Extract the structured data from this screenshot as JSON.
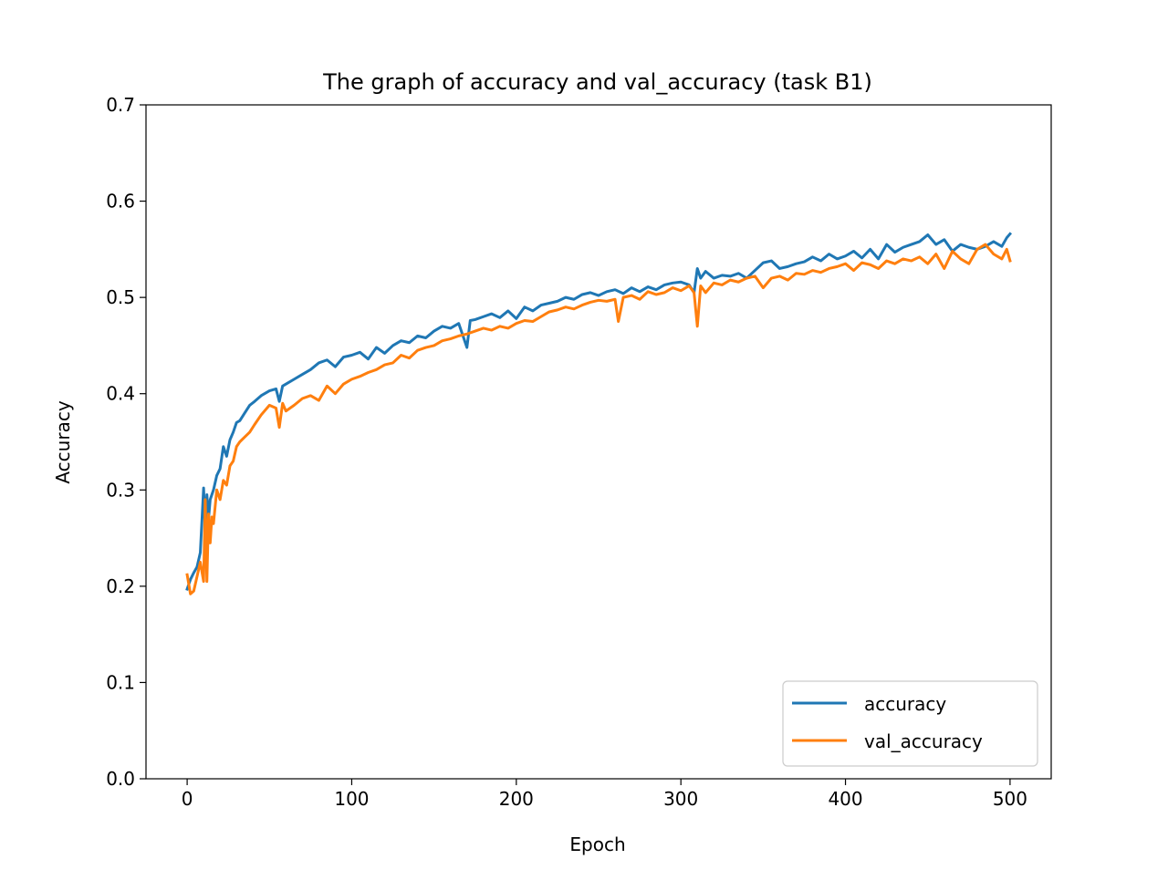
{
  "chart_data": {
    "type": "line",
    "title": "The graph of accuracy and val_accuracy (task B1)",
    "xlabel": "Epoch",
    "ylabel": "Accuracy",
    "xlim": [
      -25,
      525
    ],
    "ylim": [
      0.0,
      0.7
    ],
    "x_ticks": [
      0,
      100,
      200,
      300,
      400,
      500
    ],
    "x_tick_labels": [
      "0",
      "100",
      "200",
      "300",
      "400",
      "500"
    ],
    "y_ticks": [
      0.0,
      0.1,
      0.2,
      0.3,
      0.4,
      0.5,
      0.6,
      0.7
    ],
    "y_tick_labels": [
      "0.0",
      "0.1",
      "0.2",
      "0.3",
      "0.4",
      "0.5",
      "0.6",
      "0.7"
    ],
    "grid": false,
    "legend_position": "lower-right",
    "series": [
      {
        "name": "accuracy",
        "color": "#1f77b4",
        "x": [
          0,
          2,
          4,
          6,
          8,
          10,
          11,
          12,
          13,
          14,
          16,
          18,
          20,
          22,
          24,
          26,
          28,
          30,
          32,
          35,
          38,
          41,
          45,
          50,
          54,
          56,
          58,
          60,
          65,
          70,
          75,
          80,
          85,
          90,
          95,
          100,
          105,
          110,
          115,
          120,
          125,
          130,
          135,
          140,
          145,
          150,
          155,
          160,
          165,
          170,
          172,
          175,
          180,
          185,
          190,
          195,
          200,
          205,
          210,
          215,
          220,
          225,
          230,
          235,
          240,
          245,
          250,
          255,
          260,
          265,
          270,
          275,
          280,
          285,
          290,
          295,
          300,
          305,
          308,
          310,
          312,
          315,
          320,
          325,
          330,
          335,
          340,
          345,
          350,
          355,
          360,
          365,
          370,
          375,
          380,
          385,
          390,
          395,
          400,
          405,
          410,
          415,
          420,
          425,
          430,
          435,
          440,
          445,
          450,
          455,
          460,
          465,
          470,
          475,
          480,
          485,
          490,
          495,
          498,
          500
        ],
        "values": [
          0.197,
          0.207,
          0.214,
          0.22,
          0.235,
          0.302,
          0.26,
          0.295,
          0.27,
          0.29,
          0.3,
          0.315,
          0.322,
          0.345,
          0.335,
          0.352,
          0.36,
          0.37,
          0.372,
          0.38,
          0.388,
          0.392,
          0.398,
          0.403,
          0.405,
          0.392,
          0.408,
          0.41,
          0.415,
          0.42,
          0.425,
          0.432,
          0.435,
          0.428,
          0.438,
          0.44,
          0.443,
          0.436,
          0.448,
          0.442,
          0.45,
          0.455,
          0.453,
          0.46,
          0.458,
          0.465,
          0.47,
          0.468,
          0.473,
          0.448,
          0.476,
          0.477,
          0.48,
          0.483,
          0.479,
          0.486,
          0.478,
          0.49,
          0.486,
          0.492,
          0.494,
          0.496,
          0.5,
          0.498,
          0.503,
          0.505,
          0.502,
          0.506,
          0.508,
          0.504,
          0.51,
          0.506,
          0.511,
          0.508,
          0.513,
          0.515,
          0.516,
          0.513,
          0.505,
          0.53,
          0.52,
          0.527,
          0.52,
          0.523,
          0.522,
          0.525,
          0.52,
          0.528,
          0.536,
          0.538,
          0.53,
          0.532,
          0.535,
          0.537,
          0.542,
          0.538,
          0.545,
          0.54,
          0.543,
          0.548,
          0.541,
          0.55,
          0.54,
          0.555,
          0.547,
          0.552,
          0.555,
          0.558,
          0.565,
          0.555,
          0.56,
          0.548,
          0.555,
          0.552,
          0.55,
          0.553,
          0.558,
          0.553,
          0.562,
          0.566
        ]
      },
      {
        "name": "val_accuracy",
        "color": "#ff7f0e",
        "x": [
          0,
          2,
          4,
          6,
          8,
          10,
          11,
          12,
          13,
          14,
          15,
          16,
          18,
          20,
          22,
          24,
          26,
          28,
          30,
          32,
          35,
          38,
          41,
          45,
          50,
          54,
          56,
          58,
          60,
          65,
          70,
          75,
          80,
          85,
          90,
          95,
          100,
          105,
          110,
          115,
          120,
          125,
          130,
          135,
          140,
          145,
          150,
          155,
          160,
          165,
          170,
          175,
          180,
          185,
          190,
          195,
          200,
          205,
          210,
          215,
          220,
          225,
          230,
          235,
          240,
          245,
          250,
          255,
          260,
          262,
          265,
          270,
          275,
          280,
          285,
          290,
          295,
          300,
          305,
          308,
          310,
          312,
          315,
          320,
          325,
          330,
          335,
          340,
          345,
          350,
          355,
          360,
          365,
          370,
          375,
          380,
          385,
          390,
          395,
          400,
          405,
          410,
          415,
          420,
          425,
          430,
          435,
          440,
          445,
          450,
          455,
          460,
          465,
          470,
          475,
          480,
          485,
          490,
          495,
          498,
          500
        ],
        "values": [
          0.212,
          0.192,
          0.195,
          0.21,
          0.225,
          0.205,
          0.29,
          0.205,
          0.275,
          0.245,
          0.272,
          0.265,
          0.3,
          0.29,
          0.31,
          0.305,
          0.325,
          0.33,
          0.345,
          0.35,
          0.355,
          0.36,
          0.368,
          0.378,
          0.388,
          0.385,
          0.365,
          0.39,
          0.382,
          0.388,
          0.395,
          0.398,
          0.393,
          0.408,
          0.4,
          0.41,
          0.415,
          0.418,
          0.422,
          0.425,
          0.43,
          0.432,
          0.44,
          0.437,
          0.445,
          0.448,
          0.45,
          0.455,
          0.457,
          0.46,
          0.462,
          0.465,
          0.468,
          0.466,
          0.47,
          0.468,
          0.473,
          0.476,
          0.475,
          0.48,
          0.485,
          0.487,
          0.49,
          0.488,
          0.492,
          0.495,
          0.497,
          0.496,
          0.498,
          0.475,
          0.5,
          0.502,
          0.498,
          0.506,
          0.503,
          0.505,
          0.51,
          0.507,
          0.512,
          0.505,
          0.47,
          0.512,
          0.505,
          0.515,
          0.513,
          0.518,
          0.516,
          0.52,
          0.522,
          0.51,
          0.52,
          0.522,
          0.518,
          0.525,
          0.524,
          0.528,
          0.526,
          0.53,
          0.532,
          0.535,
          0.528,
          0.536,
          0.534,
          0.53,
          0.538,
          0.535,
          0.54,
          0.538,
          0.542,
          0.535,
          0.545,
          0.53,
          0.548,
          0.54,
          0.535,
          0.55,
          0.555,
          0.545,
          0.54,
          0.55,
          0.538
        ]
      }
    ]
  }
}
